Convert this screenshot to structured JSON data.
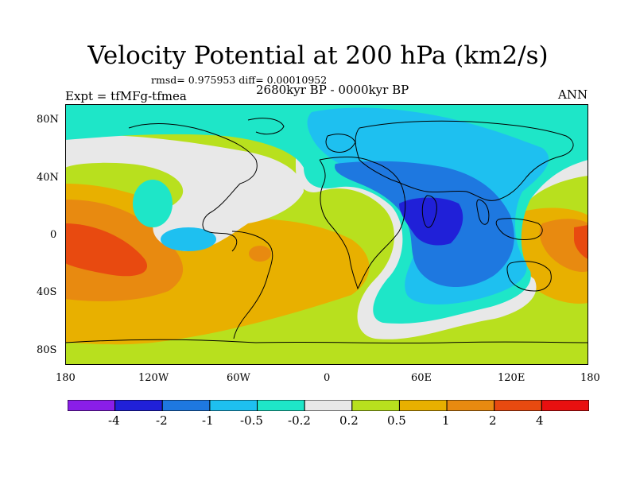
{
  "title": "Velocity Potential at 200 hPa (km2/s)",
  "stats": "rmsd= 0.975953 diff= 0.00010952",
  "left_label": "Expt = tfMFg-tfmea",
  "center_label": "2680kyr BP - 0000kyr BP",
  "right_label": "ANN",
  "map": {
    "lat_ticks": [
      "80N",
      "40N",
      "0",
      "40S",
      "80S"
    ],
    "lon_ticks": [
      "180",
      "120W",
      "60W",
      "0",
      "60E",
      "120E",
      "180"
    ]
  },
  "colorbar": {
    "labels": [
      "-4",
      "-2",
      "-1",
      "-0.5",
      "-0.2",
      "0.2",
      "0.5",
      "1",
      "2",
      "4"
    ],
    "colors": [
      "#8a1ee8",
      "#2020d8",
      "#1e78e0",
      "#1ec0f0",
      "#1ee6c8",
      "#e8e8e8",
      "#b8e01e",
      "#e8b000",
      "#e88a10",
      "#e84a10",
      "#e81010"
    ]
  }
}
